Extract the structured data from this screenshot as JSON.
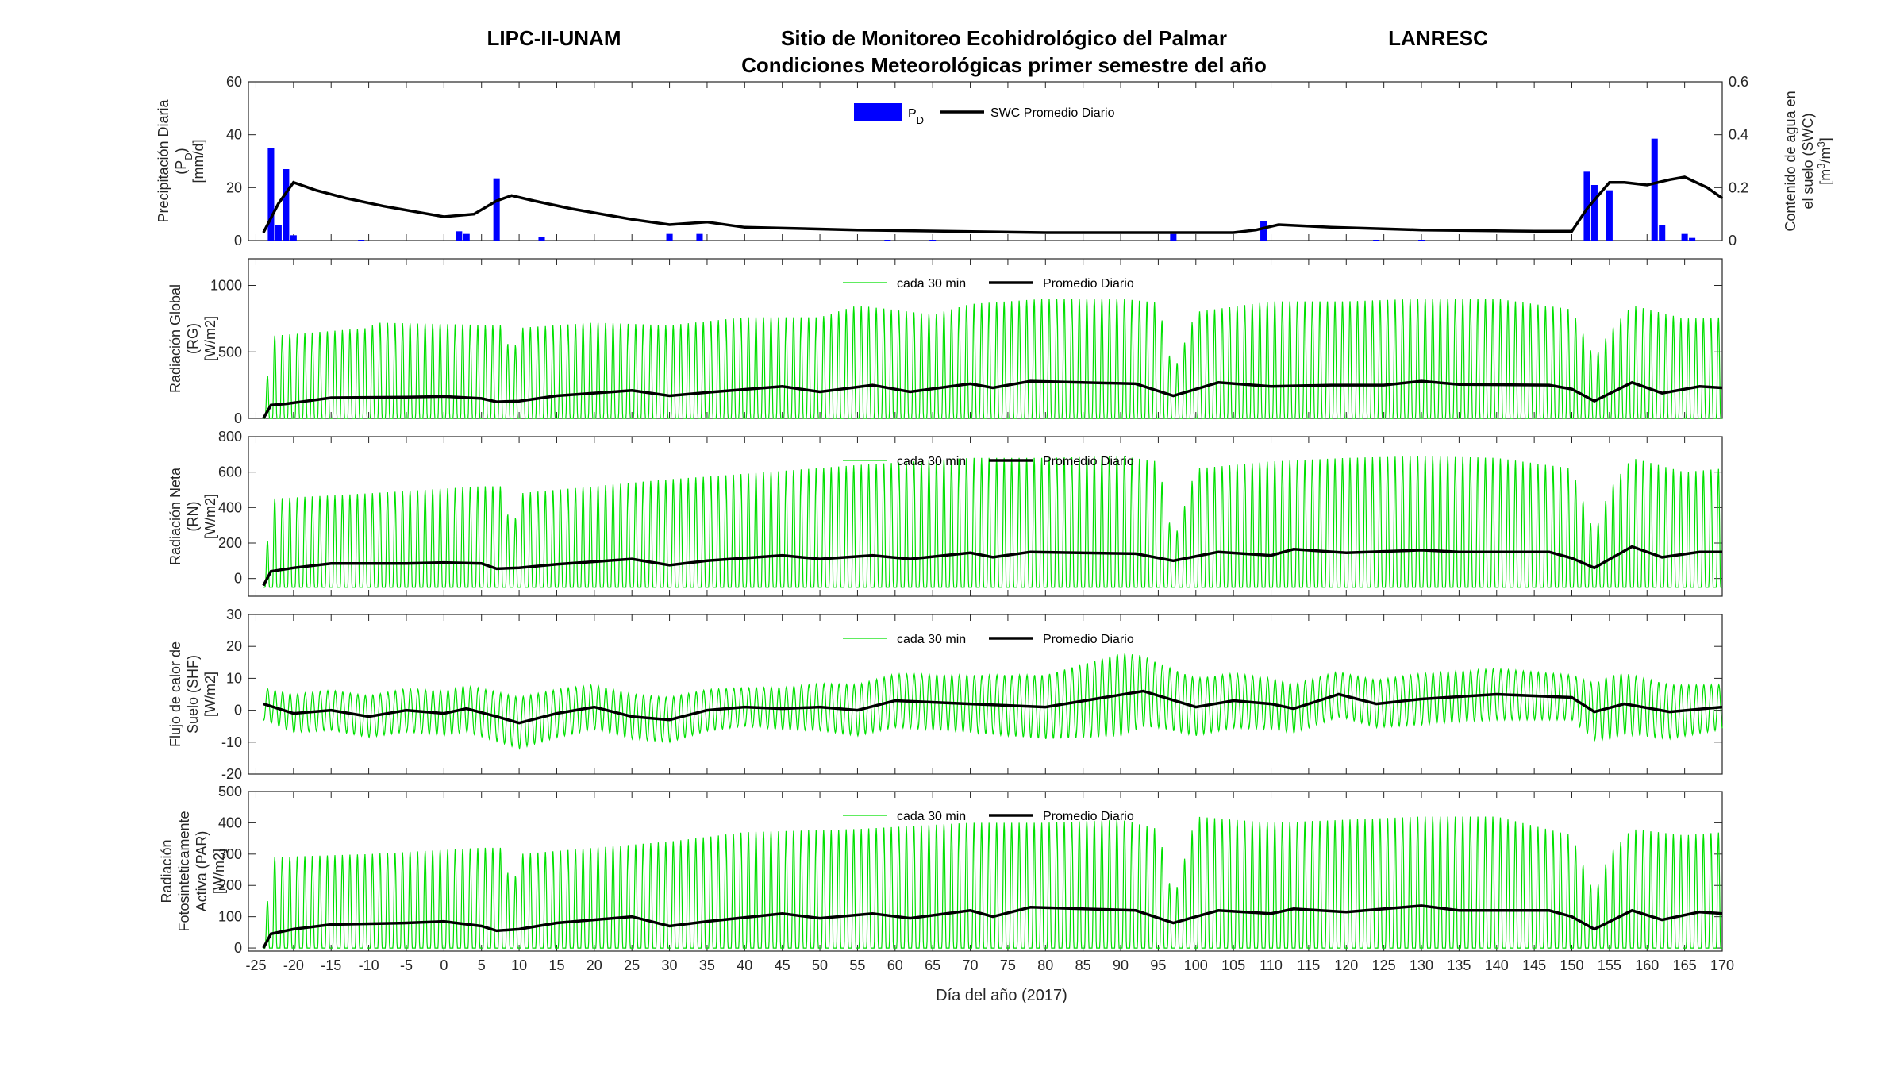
{
  "header": {
    "left": "LIPC-II-UNAM",
    "center": "Sitio de Monitoreo Ecohidrológico del Palmar",
    "right": "LANRESC",
    "subtitle": "Condiciones Meteorológicas primer semestre del año"
  },
  "colors": {
    "precip": "#0000ff",
    "avg": "#000000",
    "halfhour": "#00e000",
    "axis": "#262626"
  },
  "x_axis": {
    "label": "Día del año (2017)",
    "range": [
      -26,
      170
    ],
    "ticks": [
      -25,
      -20,
      -15,
      -10,
      -5,
      0,
      5,
      10,
      15,
      20,
      25,
      30,
      35,
      40,
      45,
      50,
      55,
      60,
      65,
      70,
      75,
      80,
      85,
      90,
      95,
      100,
      105,
      110,
      115,
      120,
      125,
      130,
      135,
      140,
      145,
      150,
      155,
      160,
      165,
      170
    ]
  },
  "chart_data": [
    {
      "type": "bar",
      "ylabel": [
        "Precipitación Diaria",
        "(P_D)",
        "[mm/d]"
      ],
      "ylim": [
        0,
        60
      ],
      "yticks": [
        0,
        20,
        40,
        60
      ],
      "y2label": [
        "Contenido de agua en",
        "el suelo (SWC)",
        "[m3/m3]"
      ],
      "y2lim": [
        0,
        0.6
      ],
      "y2ticks": [
        0,
        0.2,
        0.4,
        0.6
      ],
      "legend": {
        "placement": "top-center",
        "bar_label": "P_D",
        "line_label": "SWC Promedio Diario"
      },
      "series": [
        {
          "name": "P_D",
          "kind": "bar",
          "x": [
            -23,
            -22,
            -21,
            -20,
            -11,
            2,
            3,
            7,
            13,
            30,
            34,
            59,
            65,
            97,
            109,
            124,
            130,
            152,
            153,
            155,
            161,
            162,
            165,
            166
          ],
          "values": [
            35,
            6,
            27,
            2,
            0.3,
            3.5,
            2.5,
            23.5,
            1.5,
            2.5,
            2.5,
            0.3,
            0.3,
            2.5,
            7.5,
            0.3,
            0.3,
            26,
            21,
            19,
            38.5,
            6,
            2.5,
            1
          ]
        },
        {
          "name": "SWC Promedio Diario",
          "kind": "line",
          "axis": "right",
          "x": [
            -24,
            -22,
            -20,
            -19,
            -17,
            -13,
            -8,
            0,
            4,
            7,
            9,
            12,
            17,
            25,
            30,
            35,
            40,
            55,
            80,
            95,
            105,
            108,
            111,
            118,
            130,
            145,
            150,
            152,
            155,
            157,
            160,
            163,
            165,
            168,
            170
          ],
          "values": [
            0.03,
            0.14,
            0.22,
            0.21,
            0.19,
            0.16,
            0.13,
            0.09,
            0.1,
            0.15,
            0.17,
            0.15,
            0.12,
            0.08,
            0.06,
            0.07,
            0.05,
            0.04,
            0.03,
            0.03,
            0.03,
            0.04,
            0.06,
            0.05,
            0.04,
            0.035,
            0.035,
            0.12,
            0.22,
            0.22,
            0.21,
            0.23,
            0.24,
            0.2,
            0.16
          ]
        }
      ]
    },
    {
      "type": "line",
      "ylabel": [
        "Radiación Global",
        "(RG)",
        "[W/m2]"
      ],
      "ylim": [
        0,
        1200
      ],
      "yticks": [
        0,
        500,
        1000
      ],
      "legend": {
        "placement": "top-center",
        "a": "cada 30 min",
        "b": "Promedio Diario"
      },
      "oscillation": {
        "name": "cada 30 min",
        "night": 0,
        "peak_day": [
          -24,
          -23,
          -10,
          -9,
          8,
          9,
          10,
          20,
          30,
          40,
          50,
          55,
          65,
          70,
          80,
          90,
          95,
          97,
          100,
          110,
          120,
          130,
          140,
          150,
          153,
          155,
          158,
          165,
          170
        ],
        "peak_val": [
          0,
          620,
          680,
          720,
          700,
          420,
          680,
          720,
          700,
          760,
          760,
          850,
          780,
          860,
          900,
          900,
          870,
          340,
          800,
          880,
          880,
          900,
          900,
          820,
          450,
          650,
          850,
          750,
          760
        ]
      },
      "series": [
        {
          "name": "Promedio Diario",
          "x": [
            -24,
            -23,
            -21,
            -15,
            -5,
            0,
            5,
            7,
            10,
            15,
            25,
            30,
            35,
            45,
            50,
            57,
            62,
            70,
            73,
            78,
            92,
            97,
            103,
            110,
            118,
            125,
            130,
            135,
            147,
            150,
            153,
            158,
            162,
            167,
            170
          ],
          "values": [
            0,
            100,
            110,
            155,
            160,
            165,
            150,
            125,
            130,
            170,
            210,
            170,
            195,
            240,
            200,
            250,
            200,
            260,
            230,
            280,
            260,
            170,
            270,
            240,
            250,
            250,
            280,
            255,
            250,
            220,
            130,
            270,
            190,
            240,
            230
          ]
        }
      ]
    },
    {
      "type": "line",
      "ylabel": [
        "Radiación Neta",
        "(RN)",
        "[W/m2]"
      ],
      "ylim": [
        -100,
        800
      ],
      "yticks": [
        0,
        200,
        400,
        600,
        800
      ],
      "legend": {
        "placement": "top-center",
        "a": "cada 30 min",
        "b": "Promedio Diario"
      },
      "oscillation": {
        "name": "cada 30 min",
        "night": -50,
        "peak_day": [
          -24,
          -23,
          -10,
          5,
          8,
          9,
          10,
          20,
          30,
          40,
          55,
          70,
          80,
          90,
          95,
          97,
          100,
          110,
          120,
          130,
          140,
          150,
          153,
          155,
          158,
          165,
          170
        ],
        "peak_val": [
          -40,
          450,
          480,
          520,
          520,
          200,
          480,
          520,
          560,
          590,
          640,
          680,
          680,
          690,
          660,
          200,
          620,
          660,
          680,
          690,
          680,
          620,
          250,
          500,
          680,
          600,
          620
        ]
      },
      "series": [
        {
          "name": "Promedio Diario",
          "x": [
            -24,
            -23,
            -20,
            -15,
            -5,
            0,
            5,
            7,
            10,
            15,
            25,
            30,
            35,
            45,
            50,
            57,
            62,
            70,
            73,
            78,
            92,
            97,
            103,
            110,
            113,
            120,
            130,
            135,
            147,
            150,
            153,
            158,
            162,
            167,
            170
          ],
          "values": [
            -40,
            40,
            60,
            85,
            85,
            90,
            85,
            55,
            60,
            80,
            110,
            75,
            100,
            130,
            110,
            130,
            110,
            145,
            120,
            150,
            140,
            100,
            150,
            130,
            165,
            145,
            160,
            150,
            150,
            115,
            60,
            180,
            120,
            150,
            150
          ]
        }
      ]
    },
    {
      "type": "line",
      "ylabel": [
        "Flujo de calor de",
        "Suelo (SHF)",
        "[W/m2]"
      ],
      "ylim": [
        -20,
        30
      ],
      "yticks": [
        -20,
        -10,
        0,
        10,
        20,
        30
      ],
      "legend": {
        "placement": "top-center",
        "a": "cada 30 min",
        "b": "Promedio Diario"
      },
      "oscillation": {
        "name": "cada 30 min",
        "amp_day": [
          -24,
          -20,
          0,
          10,
          20,
          30,
          40,
          55,
          70,
          80,
          90,
          95,
          100,
          110,
          120,
          130,
          140,
          150,
          155,
          160,
          170
        ],
        "amp_val": [
          5,
          6,
          7,
          8,
          7,
          7,
          6,
          8,
          9,
          10,
          13,
          10,
          9,
          8,
          7,
          8,
          8,
          7,
          10,
          9,
          7
        ]
      },
      "series": [
        {
          "name": "Promedio Diario",
          "x": [
            -24,
            -20,
            -15,
            -10,
            -5,
            0,
            3,
            7,
            10,
            15,
            20,
            25,
            30,
            35,
            40,
            45,
            50,
            55,
            60,
            70,
            80,
            93,
            100,
            105,
            110,
            113,
            119,
            124,
            130,
            140,
            150,
            153,
            157,
            163,
            170
          ],
          "values": [
            2,
            -1,
            0,
            -2,
            0,
            -1,
            0.5,
            -2,
            -4,
            -1,
            1,
            -2,
            -3,
            0,
            1,
            0.5,
            1,
            0,
            3,
            2,
            1,
            6,
            1,
            3,
            2,
            0.5,
            5,
            2,
            3.5,
            5,
            4,
            -0.5,
            2,
            -0.5,
            1
          ]
        }
      ]
    },
    {
      "type": "line",
      "ylabel": [
        "Radiación",
        "Fotosinteticamente",
        "Activa (PAR)",
        "[W/m2]"
      ],
      "ylim": [
        -10,
        500
      ],
      "yticks": [
        0,
        100,
        200,
        300,
        400,
        500
      ],
      "legend": {
        "placement": "top-center",
        "a": "cada 30 min",
        "b": "Promedio Diario"
      },
      "oscillation": {
        "name": "cada 30 min",
        "night": 0,
        "peak_day": [
          -24,
          -23,
          -10,
          5,
          8,
          9,
          10,
          20,
          30,
          40,
          55,
          70,
          80,
          90,
          95,
          97,
          100,
          110,
          120,
          130,
          140,
          150,
          153,
          155,
          158,
          165,
          170
        ],
        "peak_val": [
          0,
          290,
          300,
          320,
          320,
          160,
          300,
          320,
          340,
          370,
          380,
          400,
          400,
          410,
          380,
          150,
          420,
          400,
          410,
          420,
          420,
          360,
          170,
          300,
          380,
          360,
          370
        ]
      },
      "series": [
        {
          "name": "Promedio Diario",
          "x": [
            -24,
            -23,
            -20,
            -15,
            -5,
            0,
            5,
            7,
            10,
            15,
            25,
            30,
            35,
            45,
            50,
            57,
            62,
            70,
            73,
            78,
            92,
            97,
            103,
            110,
            113,
            120,
            130,
            135,
            147,
            150,
            153,
            158,
            162,
            167,
            170
          ],
          "values": [
            0,
            45,
            60,
            75,
            80,
            85,
            70,
            55,
            60,
            80,
            100,
            70,
            85,
            110,
            95,
            110,
            95,
            120,
            100,
            130,
            120,
            80,
            120,
            110,
            125,
            115,
            135,
            120,
            120,
            100,
            60,
            120,
            90,
            115,
            110
          ]
        }
      ]
    }
  ]
}
